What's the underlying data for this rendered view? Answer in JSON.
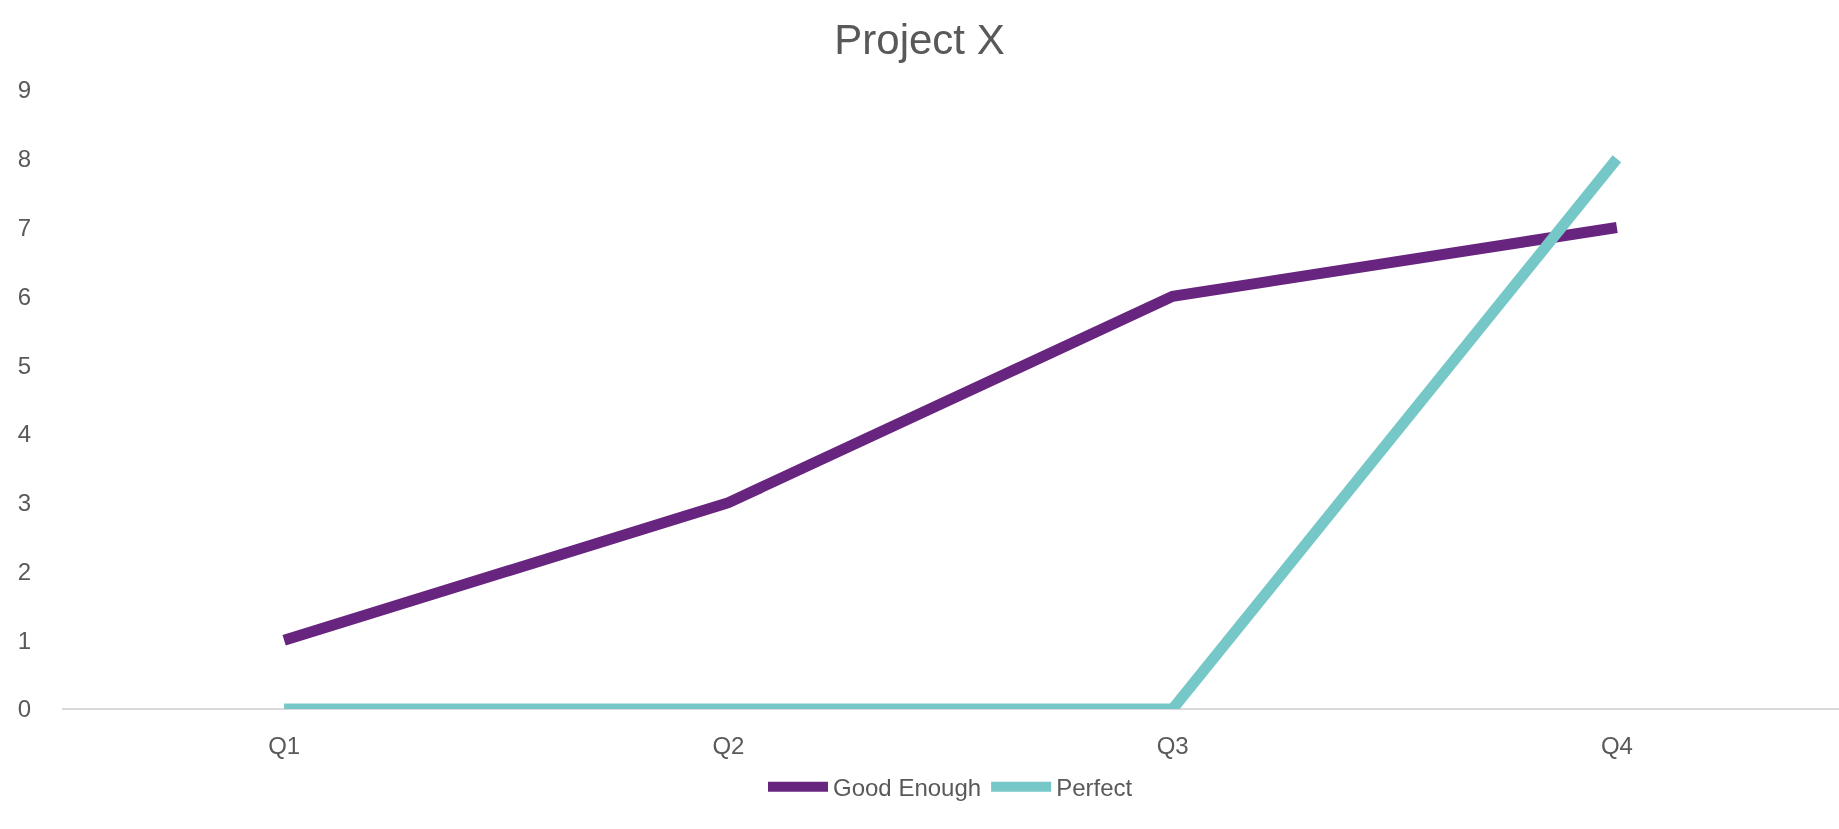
{
  "chart_data": {
    "type": "line",
    "title": "Project X",
    "categories": [
      "Q1",
      "Q2",
      "Q3",
      "Q4"
    ],
    "series": [
      {
        "name": "Good Enough",
        "color": "#68257f",
        "values": [
          1,
          3,
          6,
          7
        ]
      },
      {
        "name": "Perfect",
        "color": "#76c7c7",
        "values": [
          0,
          0,
          0,
          8
        ]
      }
    ],
    "ylim": [
      0,
      9
    ],
    "yticks": [
      0,
      1,
      2,
      3,
      4,
      5,
      6,
      7,
      8,
      9
    ],
    "grid": false,
    "legend": "bottom",
    "marker": "none",
    "line_style": "solid"
  }
}
